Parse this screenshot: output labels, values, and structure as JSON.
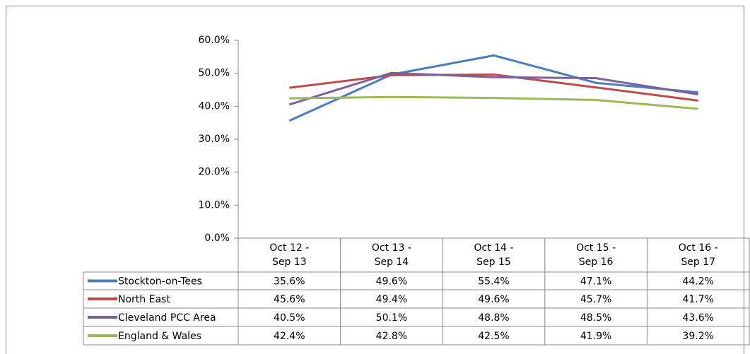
{
  "chart_data": {
    "type": "line",
    "categories": [
      "Oct 12 -\nSep 13",
      "Oct 13 -\nSep 14",
      "Oct 14 -\nSep 15",
      "Oct 15 -\nSep 16",
      "Oct 16 -\nSep 17"
    ],
    "series": [
      {
        "name": "Stockton-on-Tees",
        "color": "#4a7ebb",
        "values": [
          35.6,
          49.6,
          55.4,
          47.1,
          44.2
        ],
        "value_labels": [
          "35.6%",
          "49.6%",
          "55.4%",
          "47.1%",
          "44.2%"
        ]
      },
      {
        "name": "North East",
        "color": "#be4b48",
        "values": [
          45.6,
          49.4,
          49.6,
          45.7,
          41.7
        ],
        "value_labels": [
          "45.6%",
          "49.4%",
          "49.6%",
          "45.7%",
          "41.7%"
        ]
      },
      {
        "name": "Cleveland PCC Area",
        "color": "#7d60a0",
        "values": [
          40.5,
          50.1,
          48.8,
          48.5,
          43.6
        ],
        "value_labels": [
          "40.5%",
          "50.1%",
          "48.8%",
          "48.5%",
          "43.6%"
        ]
      },
      {
        "name": "England & Wales",
        "color": "#98b954",
        "values": [
          42.4,
          42.8,
          42.5,
          41.9,
          39.2
        ],
        "value_labels": [
          "42.4%",
          "42.8%",
          "42.5%",
          "41.9%",
          "39.2%"
        ]
      }
    ],
    "ylim": [
      0,
      60
    ],
    "yticks": [
      {
        "value": 0,
        "label": "0.0%"
      },
      {
        "value": 10,
        "label": "10.0%"
      },
      {
        "value": 20,
        "label": "20.0%"
      },
      {
        "value": 30,
        "label": "30.0%"
      },
      {
        "value": 40,
        "label": "40.0%"
      },
      {
        "value": 50,
        "label": "50.0%"
      },
      {
        "value": 60,
        "label": "60.0%"
      }
    ],
    "data_table": true
  }
}
